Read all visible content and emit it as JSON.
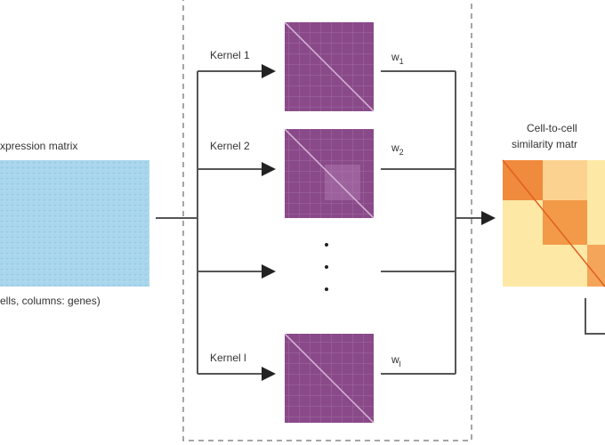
{
  "input": {
    "title": "xpression matrix",
    "caption": "ells, columns: genes)"
  },
  "kernels": [
    {
      "label": "Kernel 1",
      "weight": {
        "base": "w",
        "sub": "1"
      }
    },
    {
      "label": "Kernel 2",
      "weight": {
        "base": "w",
        "sub": "2"
      }
    },
    {
      "label": "Kernel l",
      "weight": {
        "base": "w",
        "sub": "l"
      }
    }
  ],
  "output": {
    "title_line1": "Cell-to-cell",
    "title_line2": "similarity matr"
  }
}
